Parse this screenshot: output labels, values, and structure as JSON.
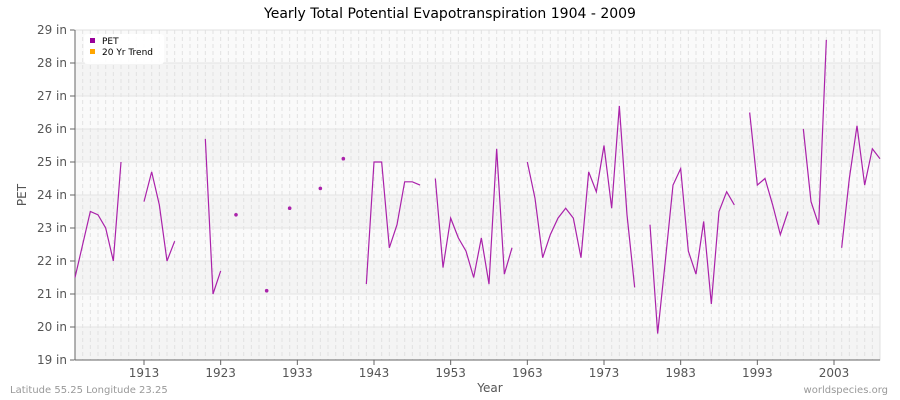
{
  "chart_data": {
    "type": "line",
    "title": "Yearly Total Potential Evapotranspiration 1904 - 2009",
    "xlabel": "Year",
    "ylabel": "PET",
    "xlim": [
      1904,
      2009
    ],
    "ylim": [
      19,
      29
    ],
    "y_unit": "in",
    "x_ticks": [
      1913,
      1923,
      1933,
      1943,
      1953,
      1963,
      1973,
      1983,
      1993,
      2003
    ],
    "y_ticks": [
      19,
      20,
      21,
      22,
      23,
      24,
      25,
      26,
      27,
      28,
      29
    ],
    "grid": true,
    "legend_position": "top-left",
    "legend": [
      {
        "name": "PET",
        "color": "#990099"
      },
      {
        "name": "20 Yr Trend",
        "color": "#ffa500"
      }
    ],
    "series": [
      {
        "name": "PET",
        "color": "#aa22aa",
        "x": [
          1904,
          1905,
          1906,
          1907,
          1908,
          1909,
          1910,
          1911,
          1912,
          1913,
          1914,
          1915,
          1916,
          1917,
          1918,
          1919,
          1920,
          1921,
          1922,
          1923,
          1924,
          1925,
          1926,
          1927,
          1928,
          1929,
          1930,
          1931,
          1932,
          1933,
          1934,
          1935,
          1936,
          1937,
          1938,
          1939,
          1940,
          1941,
          1942,
          1943,
          1944,
          1945,
          1946,
          1947,
          1948,
          1949,
          1950,
          1951,
          1952,
          1953,
          1954,
          1955,
          1956,
          1957,
          1958,
          1959,
          1960,
          1961,
          1962,
          1963,
          1964,
          1965,
          1966,
          1967,
          1968,
          1969,
          1970,
          1971,
          1972,
          1973,
          1974,
          1975,
          1976,
          1977,
          1978,
          1979,
          1980,
          1981,
          1982,
          1983,
          1984,
          1985,
          1986,
          1987,
          1988,
          1989,
          1990,
          1991,
          1992,
          1993,
          1994,
          1995,
          1996,
          1997,
          1998,
          1999,
          2000,
          2001,
          2002,
          2003,
          2004,
          2005,
          2006,
          2007,
          2008,
          2009
        ],
        "y": [
          21.5,
          22.5,
          23.5,
          23.4,
          23.0,
          22.0,
          25.0,
          null,
          null,
          23.8,
          24.7,
          23.7,
          22.0,
          22.6,
          null,
          null,
          null,
          25.7,
          21.0,
          21.7,
          null,
          23.4,
          null,
          null,
          null,
          21.1,
          null,
          null,
          23.6,
          null,
          null,
          null,
          24.2,
          null,
          null,
          25.1,
          null,
          null,
          21.3,
          25.0,
          25.0,
          22.4,
          23.1,
          24.4,
          24.4,
          24.3,
          null,
          24.5,
          21.8,
          23.3,
          22.7,
          22.3,
          21.5,
          22.7,
          21.3,
          25.4,
          21.6,
          22.4,
          null,
          25.0,
          23.9,
          22.1,
          22.8,
          23.3,
          23.6,
          23.3,
          22.1,
          24.7,
          24.1,
          25.5,
          23.6,
          26.7,
          23.4,
          21.2,
          null,
          23.1,
          19.8,
          22.0,
          24.3,
          24.8,
          22.3,
          21.6,
          23.2,
          20.7,
          23.5,
          24.1,
          23.7,
          null,
          26.5,
          24.3,
          24.5,
          23.7,
          22.8,
          23.5,
          null,
          26.0,
          23.8,
          23.1,
          28.7,
          null,
          22.4,
          24.5,
          26.1,
          24.3,
          25.4,
          25.1
        ]
      }
    ]
  },
  "footer": {
    "location": "Latitude 55.25 Longitude 23.25",
    "source": "worldspecies.org"
  }
}
